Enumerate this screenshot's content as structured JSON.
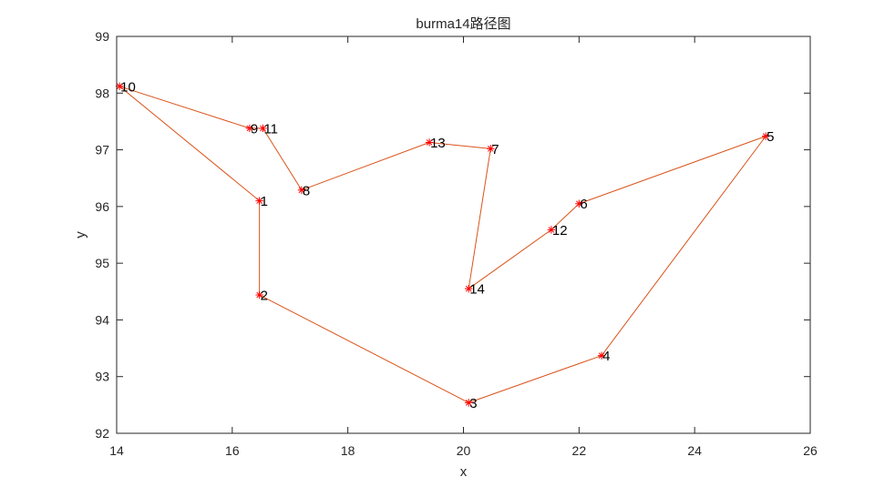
{
  "chart_data": {
    "type": "line",
    "title": "burma14路径图",
    "xlabel": "x",
    "ylabel": "y",
    "xlim": [
      14,
      26
    ],
    "ylim": [
      92,
      99
    ],
    "xticks": [
      "14",
      "16",
      "18",
      "20",
      "22",
      "24",
      "26"
    ],
    "yticks": [
      "92",
      "93",
      "94",
      "95",
      "96",
      "97",
      "98",
      "99"
    ],
    "grid": false,
    "line_color": "#D95319",
    "marker_color": "#FF0000",
    "marker": "asterisk",
    "points": [
      {
        "label": "1",
        "x": 16.47,
        "y": 96.1
      },
      {
        "label": "2",
        "x": 16.47,
        "y": 94.44
      },
      {
        "label": "3",
        "x": 20.09,
        "y": 92.54
      },
      {
        "label": "4",
        "x": 22.39,
        "y": 93.37
      },
      {
        "label": "5",
        "x": 25.23,
        "y": 97.24
      },
      {
        "label": "6",
        "x": 22.0,
        "y": 96.05
      },
      {
        "label": "7",
        "x": 20.47,
        "y": 97.02
      },
      {
        "label": "8",
        "x": 17.2,
        "y": 96.29
      },
      {
        "label": "9",
        "x": 16.3,
        "y": 97.38
      },
      {
        "label": "10",
        "x": 14.05,
        "y": 98.12
      },
      {
        "label": "11",
        "x": 16.53,
        "y": 97.38
      },
      {
        "label": "12",
        "x": 21.52,
        "y": 95.59
      },
      {
        "label": "13",
        "x": 19.41,
        "y": 97.13
      },
      {
        "label": "14",
        "x": 20.09,
        "y": 94.55
      }
    ],
    "route": [
      "1",
      "10",
      "9",
      "11",
      "8",
      "13",
      "7",
      "14",
      "12",
      "6",
      "5",
      "4",
      "3",
      "2",
      "1"
    ]
  }
}
